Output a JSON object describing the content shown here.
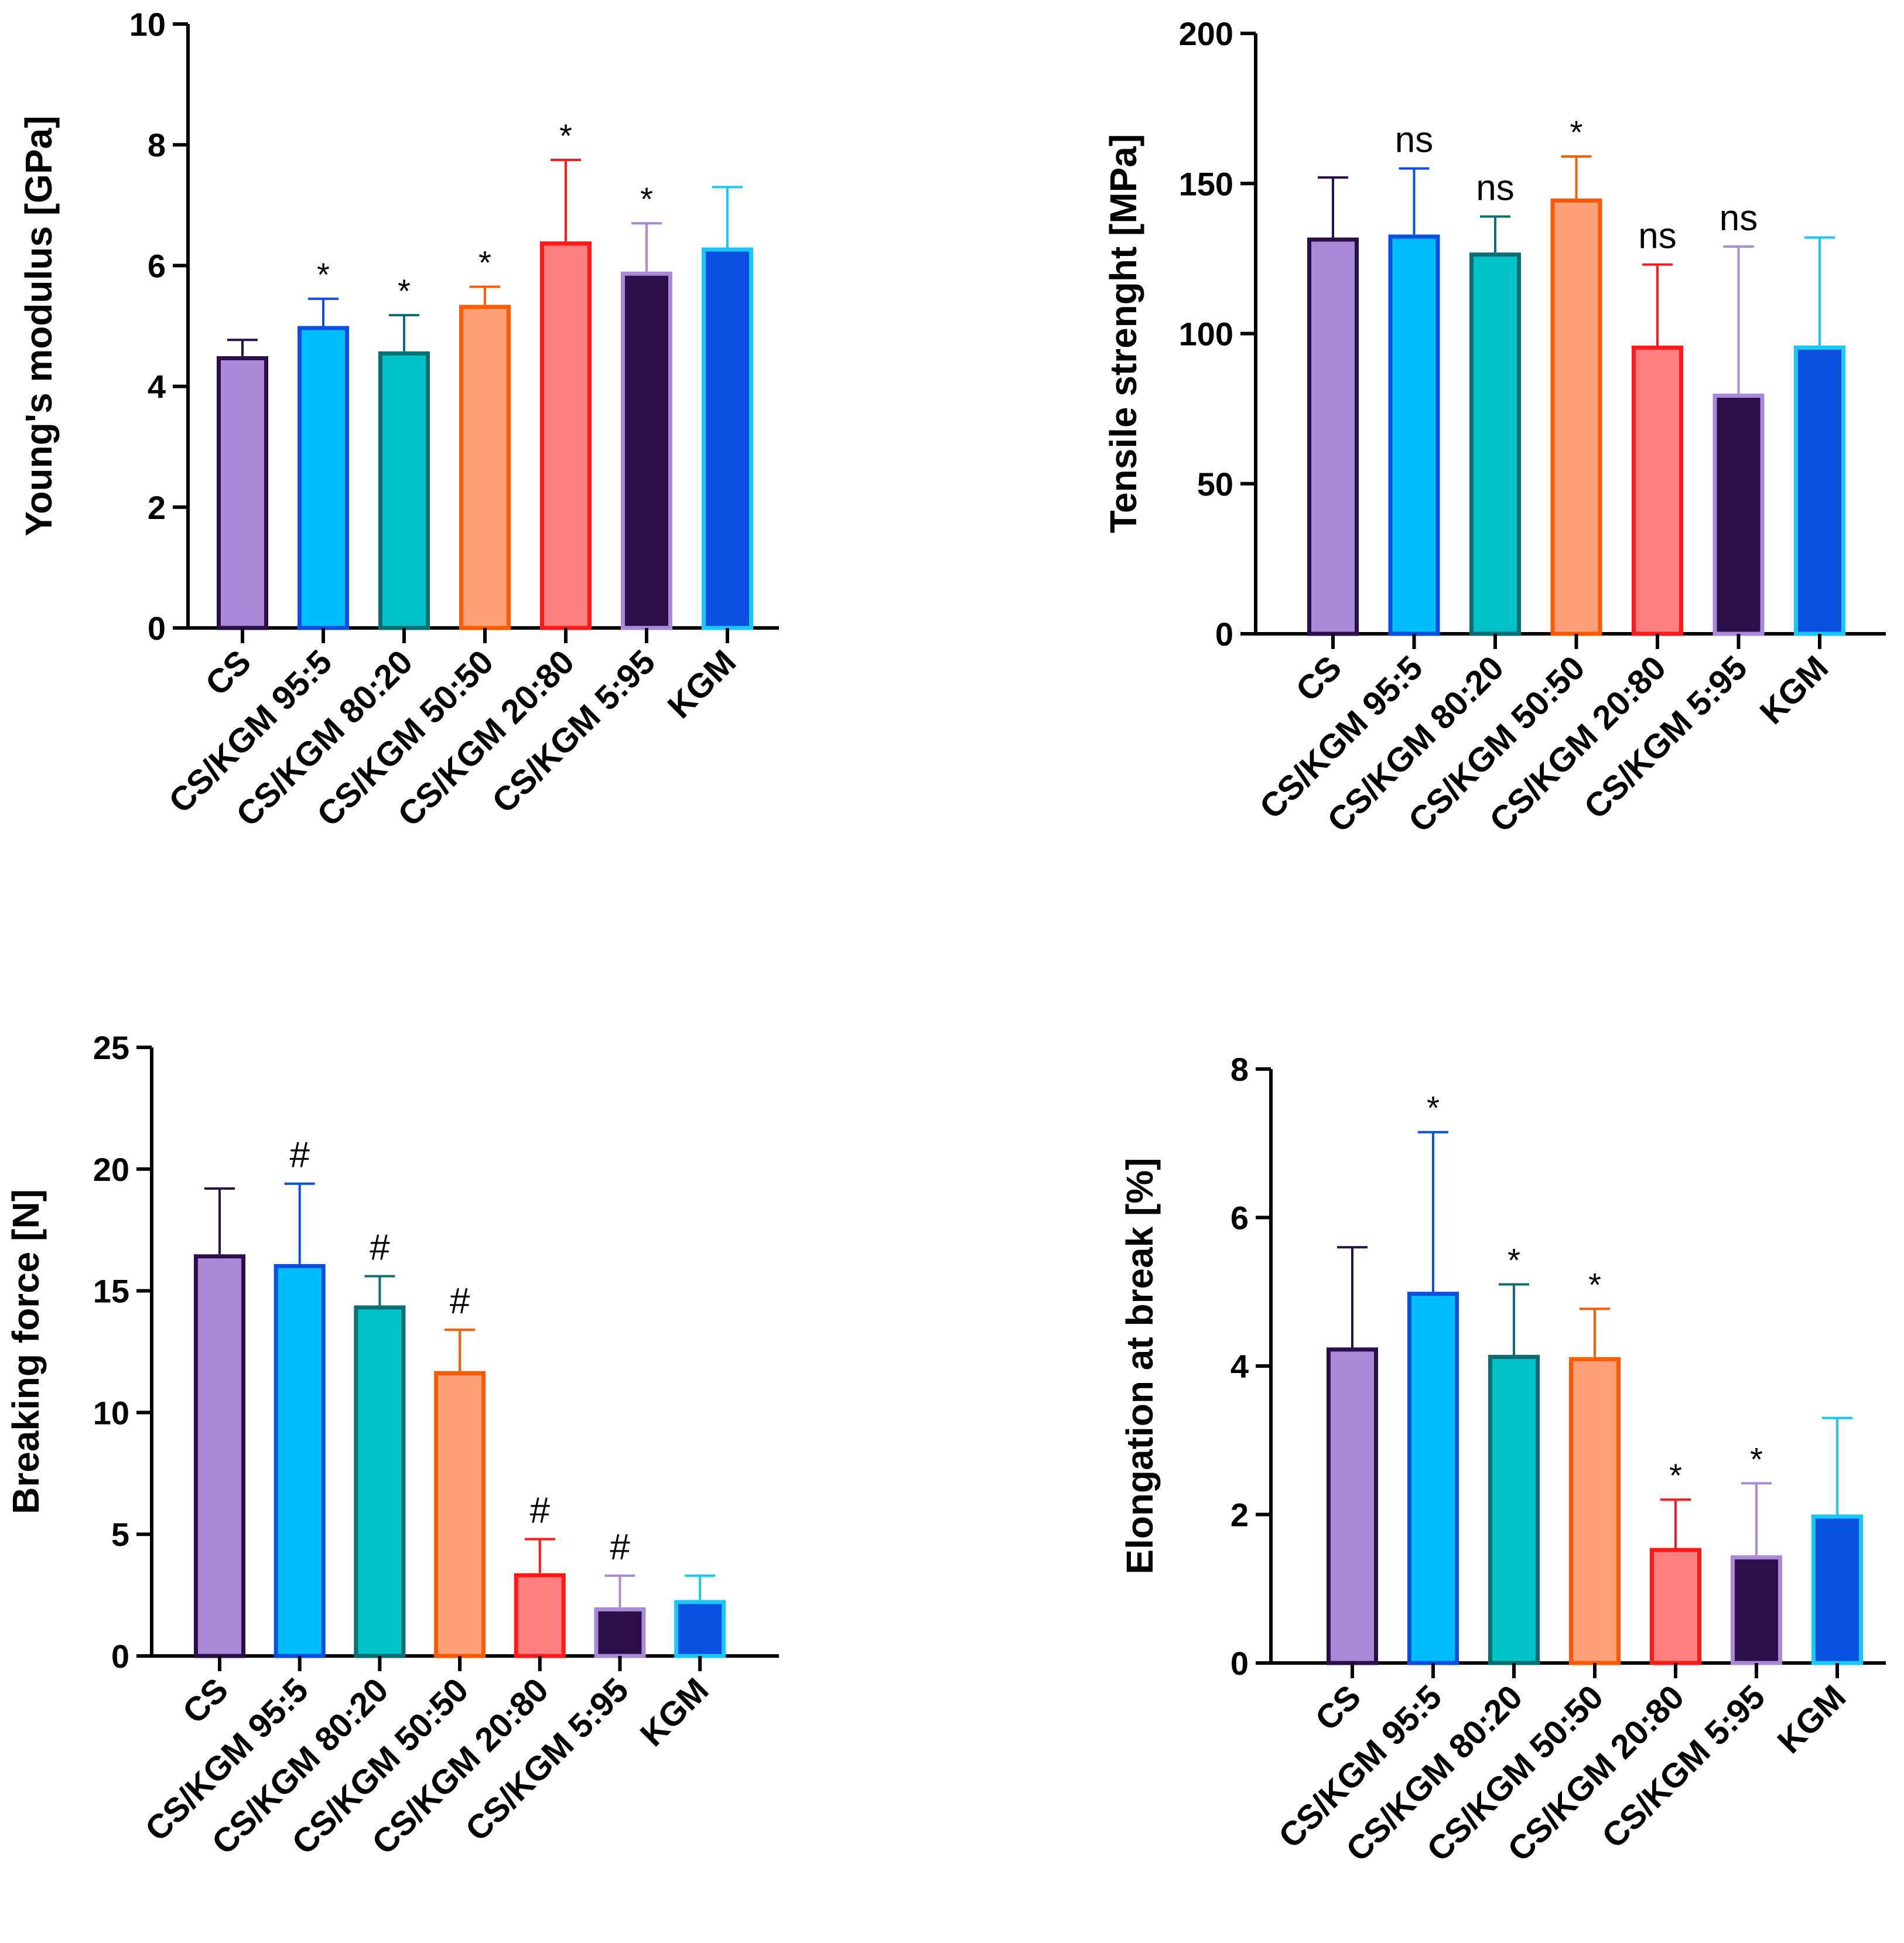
{
  "colors": {
    "purple_light": "#A98AD6",
    "purple_dark": "#2B0F4A",
    "cyan": "#00BFFF",
    "blue": "#0A4FE0",
    "teal": "#00C3C8",
    "teal_dark": "#0B6E75",
    "orange_light": "#FFA07A",
    "orange": "#FF5A00",
    "red_light": "#FF7F7F",
    "red": "#FF1A1A",
    "navy_dark": "#2B0F4A",
    "blue_strong": "#0A4FE0",
    "cyan_edge": "#18C8F8"
  },
  "chart_data": [
    {
      "type": "bar",
      "ylabel": "Young's modulus [GPa]",
      "ylim": [
        0,
        10
      ],
      "yticks": [
        "0",
        "2",
        "4",
        "6",
        "8",
        "10"
      ],
      "categories": [
        "CS",
        "CS/KGM 95:5",
        "CS/KGM 80:20",
        "CS/KGM 50:50",
        "CS/KGM 20:80",
        "CS/KGM 5:95",
        "KGM"
      ],
      "values": [
        4.5,
        5.0,
        4.58,
        5.35,
        6.4,
        5.9,
        6.3
      ],
      "errors": [
        0.27,
        0.45,
        0.6,
        0.3,
        1.35,
        0.8,
        1.0
      ],
      "annotations": [
        "",
        "*",
        "*",
        "*",
        "*",
        "*",
        ""
      ],
      "bar_styles": [
        {
          "fill": "#A98AD6",
          "edge": "#2B0F4A"
        },
        {
          "fill": "#00BFFF",
          "edge": "#0A4FE0"
        },
        {
          "fill": "#00C3C8",
          "edge": "#0B6E75"
        },
        {
          "fill": "#FFA07A",
          "edge": "#FF5A00"
        },
        {
          "fill": "#FF7F7F",
          "edge": "#FF1A1A"
        },
        {
          "fill": "#2B0F4A",
          "edge": "#A98AD6"
        },
        {
          "fill": "#0A4FE0",
          "edge": "#18C8F8"
        }
      ]
    },
    {
      "type": "bar",
      "ylabel": "Tensile strenght [MPa]",
      "ylim": [
        0,
        200
      ],
      "yticks": [
        "0",
        "50",
        "100",
        "150",
        "200"
      ],
      "categories": [
        "CS",
        "CS/KGM 95:5",
        "CS/KGM 80:20",
        "CS/KGM 50:50",
        "CS/KGM 20:80",
        "CS/KGM 5:95",
        "KGM"
      ],
      "values": [
        132,
        133,
        127,
        145,
        96,
        80,
        96
      ],
      "errors": [
        20,
        22,
        12,
        14,
        27,
        49,
        36
      ],
      "annotations": [
        "",
        "ns",
        "ns",
        "*",
        "ns",
        "ns",
        ""
      ],
      "bar_styles": [
        {
          "fill": "#A98AD6",
          "edge": "#2B0F4A"
        },
        {
          "fill": "#00BFFF",
          "edge": "#0A4FE0"
        },
        {
          "fill": "#00C3C8",
          "edge": "#0B6E75"
        },
        {
          "fill": "#FFA07A",
          "edge": "#FF5A00"
        },
        {
          "fill": "#FF7F7F",
          "edge": "#FF1A1A"
        },
        {
          "fill": "#2B0F4A",
          "edge": "#A98AD6"
        },
        {
          "fill": "#0A4FE0",
          "edge": "#18C8F8"
        }
      ]
    },
    {
      "type": "bar",
      "ylabel": "Breaking force [N]",
      "ylim": [
        0,
        25
      ],
      "yticks": [
        "0",
        "5",
        "10",
        "15",
        "20",
        "25"
      ],
      "categories": [
        "CS",
        "CS/KGM 95:5",
        "CS/KGM 80:20",
        "CS/KGM 50:50",
        "CS/KGM 20:80",
        "CS/KGM 5:95",
        "KGM"
      ],
      "values": [
        16.5,
        16.1,
        14.4,
        11.7,
        3.4,
        2.0,
        2.3
      ],
      "errors": [
        2.7,
        3.3,
        1.2,
        1.7,
        1.4,
        1.3,
        1.0
      ],
      "annotations": [
        "",
        "#",
        "#",
        "#",
        "#",
        "#",
        ""
      ],
      "bar_styles": [
        {
          "fill": "#A98AD6",
          "edge": "#2B0F4A"
        },
        {
          "fill": "#00BFFF",
          "edge": "#0A4FE0"
        },
        {
          "fill": "#00C3C8",
          "edge": "#0B6E75"
        },
        {
          "fill": "#FFA07A",
          "edge": "#FF5A00"
        },
        {
          "fill": "#FF7F7F",
          "edge": "#FF1A1A"
        },
        {
          "fill": "#2B0F4A",
          "edge": "#A98AD6"
        },
        {
          "fill": "#0A4FE0",
          "edge": "#18C8F8"
        }
      ]
    },
    {
      "type": "bar",
      "ylabel": "Elongation at break [%]",
      "ylim": [
        0,
        8
      ],
      "yticks": [
        "0",
        "2",
        "4",
        "6",
        "8"
      ],
      "categories": [
        "CS",
        "CS/KGM 95:5",
        "CS/KGM 80:20",
        "CS/KGM 50:50",
        "CS/KGM 20:80",
        "CS/KGM 5:95",
        "KGM"
      ],
      "values": [
        4.25,
        5.0,
        4.15,
        4.12,
        1.55,
        1.45,
        2.0
      ],
      "errors": [
        1.35,
        2.15,
        0.95,
        0.65,
        0.65,
        0.97,
        1.3
      ],
      "annotations": [
        "",
        "*",
        "*",
        "*",
        "*",
        "*",
        ""
      ],
      "bar_styles": [
        {
          "fill": "#A98AD6",
          "edge": "#2B0F4A"
        },
        {
          "fill": "#00BFFF",
          "edge": "#0A4FE0"
        },
        {
          "fill": "#00C3C8",
          "edge": "#0B6E75"
        },
        {
          "fill": "#FFA07A",
          "edge": "#FF5A00"
        },
        {
          "fill": "#FF7F7F",
          "edge": "#FF1A1A"
        },
        {
          "fill": "#2B0F4A",
          "edge": "#A98AD6"
        },
        {
          "fill": "#0A4FE0",
          "edge": "#18C8F8"
        }
      ]
    }
  ]
}
